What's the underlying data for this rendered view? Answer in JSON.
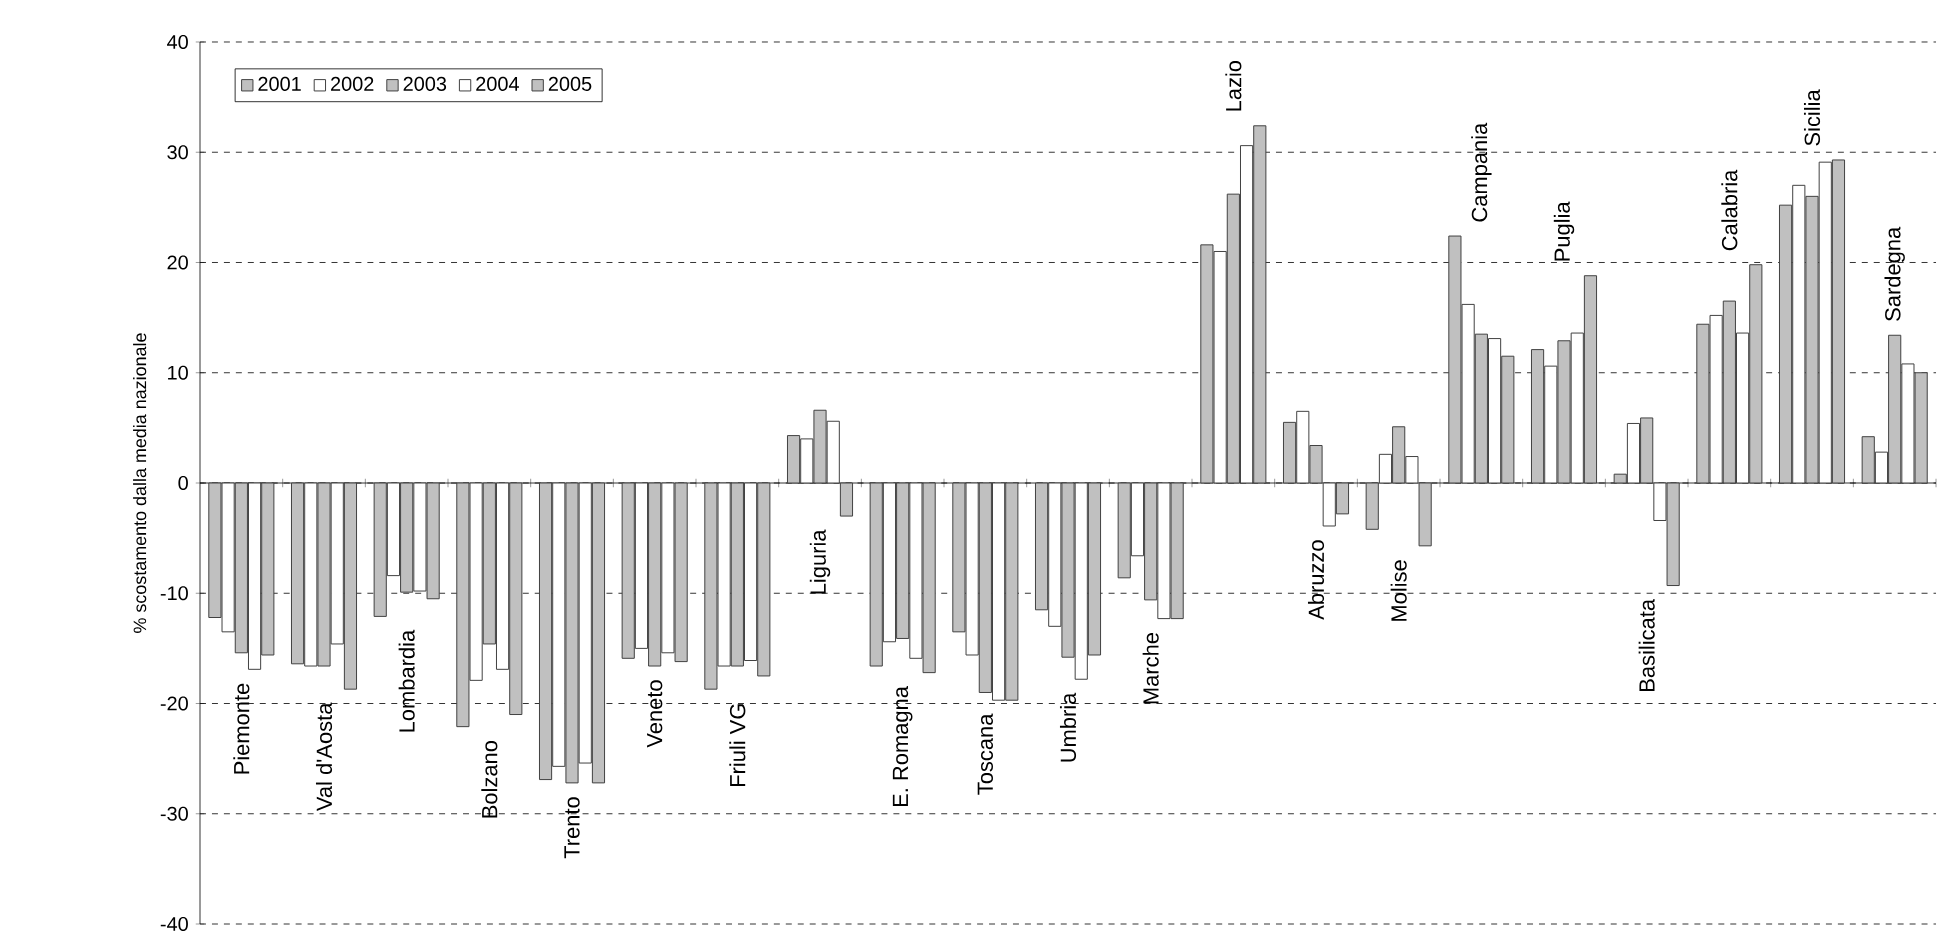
{
  "chart_data": {
    "type": "bar",
    "ylabel": "% scostamento dalla media nazionale",
    "categories": [
      "Piemonte",
      "Val d'Aosta",
      "Lombardia",
      "Bolzano",
      "Trento",
      "Veneto",
      "Friuli VG",
      "Liguria",
      "E. Romagna",
      "Toscana",
      "Umbria",
      "Marche",
      "Lazio",
      "Abruzzo",
      "Molise",
      "Campania",
      "Puglia",
      "Basilicata",
      "Calabria",
      "Sicilia",
      "Sardegna"
    ],
    "series": [
      {
        "name": "2001",
        "color": "#c0c0c0",
        "values": [
          -12.2,
          -16.4,
          -12.1,
          -22.1,
          -26.9,
          -15.9,
          -18.7,
          4.3,
          -16.6,
          -13.5,
          -11.5,
          -8.6,
          21.6,
          5.5,
          -4.2,
          22.4,
          12.1,
          0.8,
          14.4,
          25.2,
          4.2
        ]
      },
      {
        "name": "2002",
        "color": "#ffffff",
        "values": [
          -13.5,
          -16.6,
          -8.4,
          -17.9,
          -25.7,
          -15.0,
          -16.6,
          4.0,
          -14.4,
          -15.6,
          -13.0,
          -6.6,
          21.0,
          6.5,
          2.6,
          16.2,
          10.6,
          5.4,
          15.2,
          27.0,
          2.8
        ]
      },
      {
        "name": "2003",
        "color": "#c0c0c0",
        "values": [
          -15.4,
          -16.6,
          -9.9,
          -14.6,
          -27.2,
          -16.6,
          -16.6,
          6.6,
          -14.1,
          -19.0,
          -15.8,
          -10.6,
          26.2,
          3.4,
          5.1,
          13.5,
          12.9,
          5.9,
          16.5,
          26.0,
          13.4
        ]
      },
      {
        "name": "2004",
        "color": "#ffffff",
        "values": [
          -16.9,
          -14.6,
          -9.8,
          -16.9,
          -25.4,
          -15.4,
          -16.1,
          5.6,
          -15.9,
          -19.7,
          -17.8,
          -12.3,
          30.6,
          -3.9,
          2.4,
          13.1,
          13.6,
          -3.4,
          13.6,
          29.1,
          10.8
        ]
      },
      {
        "name": "2005",
        "color": "#c0c0c0",
        "values": [
          -15.6,
          -18.7,
          -10.5,
          -21.0,
          -27.2,
          -16.2,
          -17.5,
          -3.0,
          -17.2,
          -19.7,
          -15.6,
          -12.3,
          32.4,
          -2.8,
          -5.7,
          11.5,
          18.8,
          -9.3,
          19.8,
          29.3,
          10.0
        ]
      }
    ],
    "ylim": [
      -40,
      40
    ],
    "yticks": [
      -40,
      -30,
      -20,
      -10,
      0,
      10,
      20,
      30,
      40
    ],
    "grid": "y",
    "legend": "top left"
  }
}
